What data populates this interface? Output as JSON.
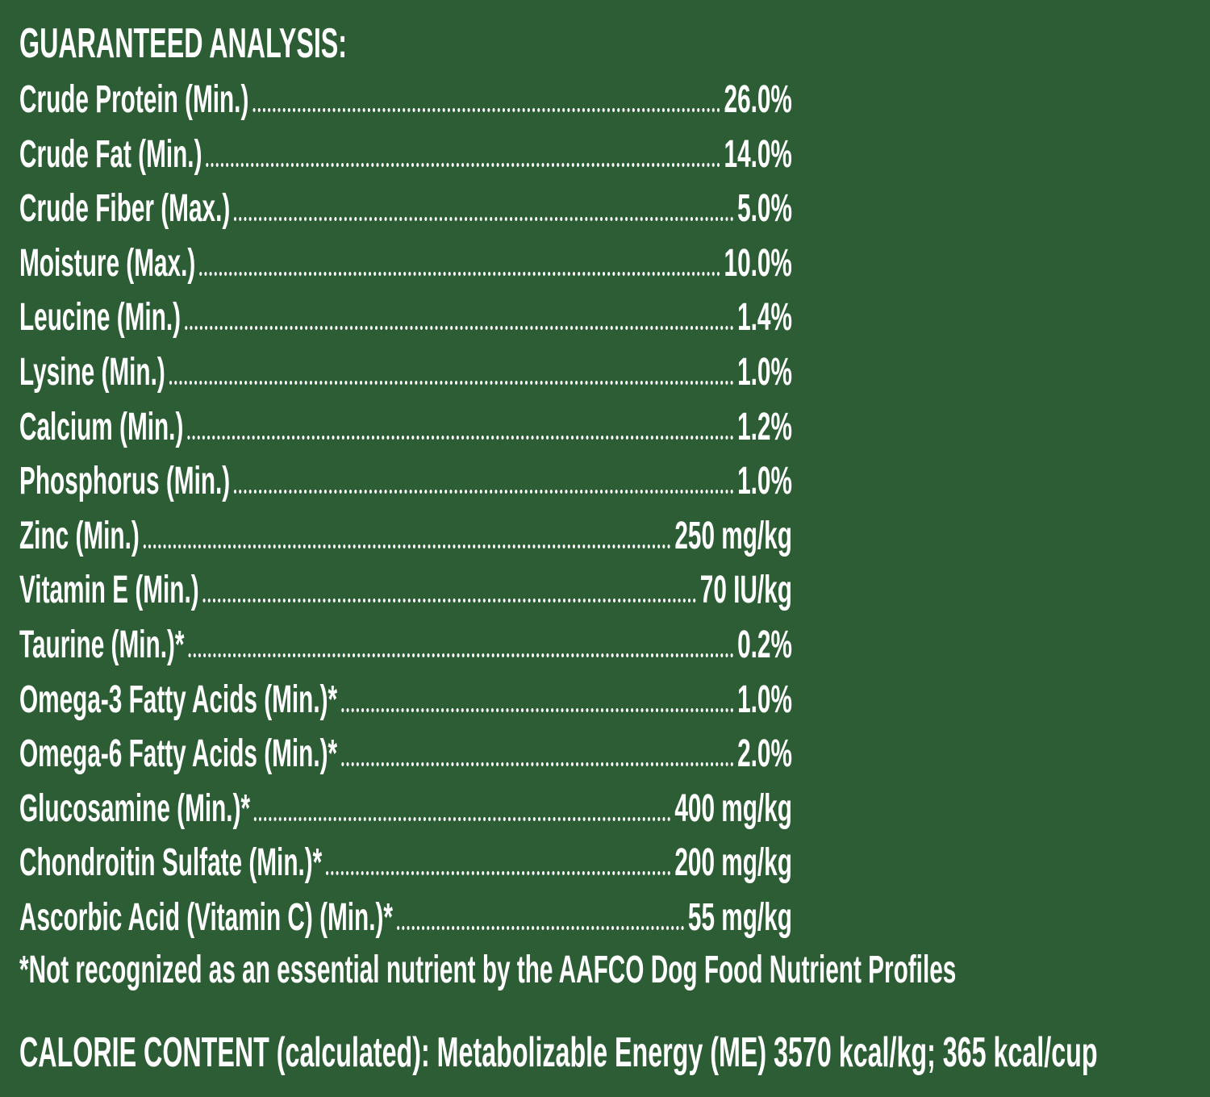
{
  "header": {
    "title": "GUARANTEED ANALYSIS:"
  },
  "table": {
    "rows": [
      [
        "Crude Protein (Min.)",
        "26.0%"
      ],
      [
        "Crude Fat (Min.)",
        "14.0%"
      ],
      [
        "Crude Fiber (Max.)",
        "5.0%"
      ],
      [
        "Moisture (Max.)",
        "10.0%"
      ],
      [
        "Leucine (Min.)",
        "1.4%"
      ],
      [
        "Lysine (Min.)",
        "1.0%"
      ],
      [
        "Calcium (Min.)",
        "1.2%"
      ],
      [
        "Phosphorus (Min.)",
        "1.0%"
      ],
      [
        "Zinc (Min.)",
        "250 mg/kg"
      ],
      [
        "Vitamin E (Min.)",
        "70 IU/kg"
      ],
      [
        "Taurine (Min.)*",
        "0.2%"
      ],
      [
        "Omega-3 Fatty Acids (Min.)*",
        "1.0%"
      ],
      [
        "Omega-6 Fatty Acids (Min.)*",
        "2.0%"
      ],
      [
        "Glucosamine (Min.)*",
        "400 mg/kg"
      ],
      [
        "Chondroitin Sulfate (Min.)*",
        "200 mg/kg"
      ],
      [
        "Ascorbic Acid (Vitamin C) (Min.)*",
        "55 mg/kg"
      ]
    ]
  },
  "footnote": "*Not recognized as an essential nutrient by the AAFCO Dog Food Nutrient Profiles",
  "calorie": "CALORIE CONTENT (calculated): Metabolizable Energy (ME) 3570 kcal/kg; 365 kcal/cup"
}
